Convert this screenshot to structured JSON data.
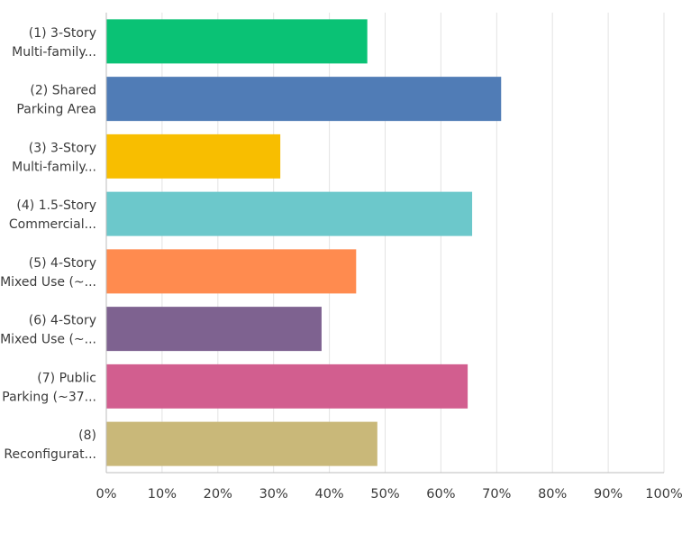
{
  "chart_data": {
    "type": "bar",
    "orientation": "horizontal",
    "categories": [
      [
        "(1) 3-Story",
        "Multi-family..."
      ],
      [
        "(2) Shared",
        "Parking Area"
      ],
      [
        "(3) 3-Story",
        "Multi-family..."
      ],
      [
        "(4) 1.5-Story",
        "Commercial..."
      ],
      [
        "(5) 4-Story",
        "Mixed Use (~..."
      ],
      [
        "(6) 4-Story",
        "Mixed Use (~..."
      ],
      [
        "(7) Public",
        "Parking (~37..."
      ],
      [
        "(8)",
        "Reconfigurat..."
      ]
    ],
    "values": [
      46.8,
      70.8,
      31.2,
      65.6,
      44.8,
      38.6,
      64.8,
      48.6
    ],
    "colors": [
      "#0ac275",
      "#507cb6",
      "#f8be00",
      "#6cc8cb",
      "#ff8b4f",
      "#7e6290",
      "#d25e8f",
      "#c9b879"
    ],
    "xlim": [
      0,
      100
    ],
    "xticks": [
      "0%",
      "10%",
      "20%",
      "30%",
      "40%",
      "50%",
      "60%",
      "70%",
      "80%",
      "90%",
      "100%"
    ],
    "grid": true,
    "title": "",
    "xlabel": "",
    "ylabel": ""
  }
}
